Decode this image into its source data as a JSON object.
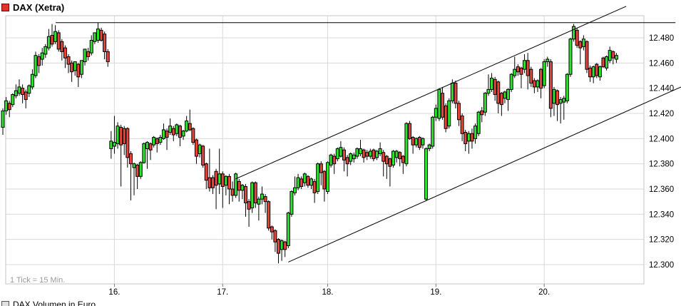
{
  "header": {
    "title": "DAX (Xetra)",
    "legend_color": "#e8312a"
  },
  "footer": {
    "tick_note": "1 Tick = 15 Min.",
    "volume_legend": "DAX Volumen in Euro"
  },
  "chart_data": {
    "type": "candlestick",
    "title": "DAX (Xetra)",
    "interval_note": "1 Tick = 15 Min.",
    "ylim": [
      12285,
      12497
    ],
    "grid": true,
    "y_ticks": [
      {
        "label": "12.480",
        "value": 12480
      },
      {
        "label": "12.460",
        "value": 12460
      },
      {
        "label": "12.440",
        "value": 12440
      },
      {
        "label": "12.420",
        "value": 12420
      },
      {
        "label": "12.400",
        "value": 12400
      },
      {
        "label": "12.380",
        "value": 12380
      },
      {
        "label": "12.360",
        "value": 12360
      },
      {
        "label": "12.340",
        "value": 12340
      },
      {
        "label": "12.320",
        "value": 12320
      },
      {
        "label": "12.300",
        "value": 12300
      }
    ],
    "x_ticks": [
      {
        "label": "16.",
        "index": 34
      },
      {
        "label": "17.",
        "index": 67
      },
      {
        "label": "18.",
        "index": 99
      },
      {
        "label": "19.",
        "index": 132
      },
      {
        "label": "20.",
        "index": 165
      }
    ],
    "trendlines": [
      {
        "name": "resistance",
        "i1": 16.1,
        "p1": 12492,
        "i2": 205,
        "p2": 12492
      },
      {
        "name": "channel-upper",
        "i1": 70.9,
        "p1": 12368,
        "i2": 190,
        "p2": 12505
      },
      {
        "name": "channel-lower",
        "i1": 87,
        "p1": 12302,
        "i2": 206.7,
        "p2": 12441
      }
    ],
    "colors": {
      "up": "#2ee32e",
      "down": "#e8443a",
      "outline": "#000000",
      "grid": "#dadada",
      "border": "#c6c6c6"
    },
    "candles": [
      [
        12409,
        12424,
        12403,
        12422
      ],
      [
        12422,
        12433,
        12419,
        12430
      ],
      [
        12428,
        12430,
        12417,
        12423
      ],
      [
        12427,
        12436,
        12425,
        12435
      ],
      [
        12434,
        12443,
        12432,
        12438
      ],
      [
        12436,
        12447,
        12434,
        12441
      ],
      [
        12440,
        12443,
        12428,
        12435
      ],
      [
        12437,
        12439,
        12424,
        12431
      ],
      [
        12436,
        12443,
        12433,
        12442
      ],
      [
        12441,
        12455,
        12439,
        12451
      ],
      [
        12450,
        12469,
        12448,
        12466
      ],
      [
        12465,
        12467,
        12452,
        12458
      ],
      [
        12463,
        12472,
        12458,
        12468
      ],
      [
        12467,
        12475,
        12464,
        12473
      ],
      [
        12472,
        12487,
        12470,
        12481
      ],
      [
        12482,
        12491,
        12473,
        12475
      ],
      [
        12477,
        12490,
        12475,
        12485
      ],
      [
        12484,
        12486,
        12469,
        12471
      ],
      [
        12477,
        12479,
        12462,
        12469
      ],
      [
        12472,
        12474,
        12456,
        12464
      ],
      [
        12465,
        12467,
        12452,
        12459
      ],
      [
        12460,
        12462,
        12445,
        12453
      ],
      [
        12454,
        12461,
        12450,
        12461
      ],
      [
        12459,
        12460,
        12441,
        12449
      ],
      [
        12451,
        12462,
        12448,
        12462
      ],
      [
        12461,
        12471,
        12458,
        12471
      ],
      [
        12469,
        12472,
        12462,
        12465
      ],
      [
        12468,
        12482,
        12466,
        12478
      ],
      [
        12477,
        12484,
        12475,
        12484
      ],
      [
        12478,
        12492,
        12476,
        12487
      ],
      [
        12486,
        12488,
        12477,
        12478
      ],
      [
        12483,
        12485,
        12463,
        12469
      ],
      [
        12469,
        12471,
        12457,
        12461
      ],
      [
        12392,
        12406,
        12384,
        12398
      ],
      [
        12394,
        12418,
        12388,
        12397
      ],
      [
        12396,
        12413,
        12392,
        12410
      ],
      [
        12409,
        12411,
        12362,
        12395
      ],
      [
        12408,
        12410,
        12387,
        12396
      ],
      [
        12408,
        12409,
        12377,
        12385
      ],
      [
        12388,
        12390,
        12351,
        12380
      ],
      [
        12377,
        12381,
        12355,
        12380
      ],
      [
        12379,
        12380,
        12360,
        12370
      ],
      [
        12370,
        12382,
        12368,
        12381
      ],
      [
        12381,
        12397,
        12380,
        12396
      ],
      [
        12392,
        12398,
        12376,
        12397
      ],
      [
        12396,
        12397,
        12383,
        12391
      ],
      [
        12395,
        12402,
        12393,
        12401
      ],
      [
        12400,
        12401,
        12389,
        12396
      ],
      [
        12397,
        12403,
        12395,
        12401
      ],
      [
        12400,
        12412,
        12399,
        12407
      ],
      [
        12406,
        12408,
        12391,
        12401
      ],
      [
        12405,
        12416,
        12403,
        12410
      ],
      [
        12408,
        12410,
        12398,
        12403
      ],
      [
        12404,
        12412,
        12402,
        12411
      ],
      [
        12410,
        12411,
        12394,
        12401
      ],
      [
        12402,
        12407,
        12399,
        12406
      ],
      [
        12406,
        12418,
        12405,
        12414
      ],
      [
        12412,
        12423,
        12406,
        12407
      ],
      [
        12408,
        12409,
        12395,
        12397
      ],
      [
        12399,
        12400,
        12380,
        12386
      ],
      [
        12388,
        12396,
        12385,
        12395
      ],
      [
        12394,
        12395,
        12377,
        12379
      ],
      [
        12380,
        12381,
        12360,
        12367
      ],
      [
        12369,
        12392,
        12358,
        12361
      ],
      [
        12369,
        12371,
        12356,
        12361
      ],
      [
        12374,
        12376,
        12344,
        12363
      ],
      [
        12364,
        12392,
        12356,
        12372
      ],
      [
        12372,
        12374,
        12345,
        12362
      ],
      [
        12363,
        12371,
        12355,
        12370
      ],
      [
        12370,
        12372,
        12348,
        12360
      ],
      [
        12360,
        12366,
        12350,
        12355
      ],
      [
        12355,
        12373,
        12353,
        12372
      ],
      [
        12366,
        12368,
        12350,
        12359
      ],
      [
        12359,
        12364,
        12352,
        12363
      ],
      [
        12362,
        12364,
        12338,
        12349
      ],
      [
        12350,
        12352,
        12330,
        12344
      ],
      [
        12345,
        12366,
        12341,
        12365
      ],
      [
        12365,
        12366,
        12345,
        12349
      ],
      [
        12348,
        12354,
        12335,
        12352
      ],
      [
        12352,
        12362,
        12348,
        12356
      ],
      [
        12354,
        12356,
        12341,
        12350
      ],
      [
        12350,
        12351,
        12327,
        12329
      ],
      [
        12330,
        12331,
        12320,
        12326
      ],
      [
        12327,
        12328,
        12310,
        12318
      ],
      [
        12320,
        12321,
        12301,
        12309
      ],
      [
        12312,
        12320,
        12303,
        12319
      ],
      [
        12318,
        12319,
        12306,
        12312
      ],
      [
        12315,
        12342,
        12313,
        12341
      ],
      [
        12340,
        12359,
        12338,
        12358
      ],
      [
        12357,
        12370,
        12355,
        12361
      ],
      [
        12361,
        12372,
        12359,
        12369
      ],
      [
        12368,
        12370,
        12360,
        12362
      ],
      [
        12365,
        12373,
        12362,
        12372
      ],
      [
        12370,
        12371,
        12361,
        12363
      ],
      [
        12363,
        12369,
        12360,
        12368
      ],
      [
        12366,
        12368,
        12349,
        12357
      ],
      [
        12358,
        12381,
        12356,
        12380
      ],
      [
        12380,
        12382,
        12363,
        12373
      ],
      [
        12374,
        12375,
        12350,
        12360
      ],
      [
        12358,
        12382,
        12356,
        12381
      ],
      [
        12379,
        12388,
        12377,
        12387
      ],
      [
        12386,
        12388,
        12372,
        12380
      ],
      [
        12384,
        12393,
        12382,
        12392
      ],
      [
        12386,
        12398,
        12385,
        12393
      ],
      [
        12391,
        12393,
        12374,
        12383
      ],
      [
        12385,
        12387,
        12370,
        12380
      ],
      [
        12382,
        12389,
        12379,
        12388
      ],
      [
        12384,
        12389,
        12381,
        12387
      ],
      [
        12386,
        12393,
        12384,
        12392
      ],
      [
        12388,
        12399,
        12386,
        12392
      ],
      [
        12391,
        12392,
        12381,
        12385
      ],
      [
        12389,
        12391,
        12383,
        12386
      ],
      [
        12386,
        12392,
        12384,
        12390
      ],
      [
        12391,
        12392,
        12382,
        12384
      ],
      [
        12385,
        12391,
        12383,
        12390
      ],
      [
        12388,
        12397,
        12386,
        12392
      ],
      [
        12389,
        12391,
        12370,
        12382
      ],
      [
        12386,
        12387,
        12368,
        12380
      ],
      [
        12384,
        12385,
        12362,
        12378
      ],
      [
        12379,
        12391,
        12377,
        12390
      ],
      [
        12385,
        12391,
        12381,
        12390
      ],
      [
        12389,
        12390,
        12378,
        12384
      ],
      [
        12386,
        12387,
        12372,
        12381
      ],
      [
        12380,
        12413,
        12378,
        12412
      ],
      [
        12412,
        12414,
        12399,
        12400
      ],
      [
        12401,
        12402,
        12388,
        12395
      ],
      [
        12395,
        12401,
        12393,
        12400
      ],
      [
        12401,
        12402,
        12391,
        12393
      ],
      [
        12395,
        12401,
        12392,
        12400
      ],
      [
        12352,
        12393,
        12351,
        12392
      ],
      [
        12392,
        12396,
        12390,
        12395
      ],
      [
        12394,
        12418,
        12392,
        12417
      ],
      [
        12417,
        12427,
        12414,
        12424
      ],
      [
        12416,
        12440,
        12414,
        12439
      ],
      [
        12436,
        12441,
        12415,
        12417
      ],
      [
        12426,
        12428,
        12405,
        12408
      ],
      [
        12410,
        12432,
        12408,
        12430
      ],
      [
        12430,
        12447,
        12428,
        12444
      ],
      [
        12444,
        12446,
        12424,
        12428
      ],
      [
        12428,
        12430,
        12410,
        12415
      ],
      [
        12418,
        12420,
        12398,
        12404
      ],
      [
        12405,
        12407,
        12390,
        12396
      ],
      [
        12398,
        12406,
        12388,
        12404
      ],
      [
        12404,
        12408,
        12392,
        12398
      ],
      [
        12400,
        12412,
        12396,
        12410
      ],
      [
        12404,
        12422,
        12402,
        12421
      ],
      [
        12422,
        12425,
        12413,
        12419
      ],
      [
        12421,
        12437,
        12418,
        12436
      ],
      [
        12436,
        12451,
        12434,
        12439
      ],
      [
        12439,
        12452,
        12437,
        12448
      ],
      [
        12447,
        12449,
        12430,
        12435
      ],
      [
        12445,
        12446,
        12420,
        12428
      ],
      [
        12436,
        12437,
        12418,
        12427
      ],
      [
        12432,
        12438,
        12428,
        12437
      ],
      [
        12431,
        12440,
        12422,
        12439
      ],
      [
        12439,
        12452,
        12437,
        12451
      ],
      [
        12450,
        12465,
        12448,
        12455
      ],
      [
        12457,
        12459,
        12450,
        12453
      ],
      [
        12456,
        12457,
        12440,
        12451
      ],
      [
        12455,
        12467,
        12452,
        12462
      ],
      [
        12462,
        12468,
        12439,
        12450
      ],
      [
        12455,
        12457,
        12441,
        12444
      ],
      [
        12446,
        12448,
        12436,
        12441
      ],
      [
        12441,
        12447,
        12437,
        12446
      ],
      [
        12455,
        12456,
        12432,
        12440
      ],
      [
        12442,
        12463,
        12440,
        12461
      ],
      [
        12461,
        12465,
        12457,
        12463
      ],
      [
        12461,
        12463,
        12417,
        12424
      ],
      [
        12428,
        12441,
        12418,
        12439
      ],
      [
        12438,
        12439,
        12414,
        12427
      ],
      [
        12428,
        12433,
        12412,
        12431
      ],
      [
        12429,
        12434,
        12415,
        12432
      ],
      [
        12430,
        12452,
        12428,
        12451
      ],
      [
        12451,
        12480,
        12449,
        12479
      ],
      [
        12479,
        12491,
        12477,
        12489
      ],
      [
        12486,
        12488,
        12472,
        12474
      ],
      [
        12477,
        12478,
        12459,
        12472
      ],
      [
        12473,
        12482,
        12470,
        12479
      ],
      [
        12477,
        12478,
        12452,
        12455
      ],
      [
        12456,
        12458,
        12445,
        12449
      ],
      [
        12449,
        12458,
        12444,
        12457
      ],
      [
        12459,
        12460,
        12448,
        12450
      ],
      [
        12449,
        12458,
        12446,
        12457
      ],
      [
        12464,
        12465,
        12456,
        12457
      ],
      [
        12456,
        12466,
        12454,
        12465
      ],
      [
        12462,
        12473,
        12460,
        12470
      ],
      [
        12469,
        12470,
        12459,
        12464
      ],
      [
        12463,
        12468,
        12460,
        12466
      ]
    ]
  }
}
